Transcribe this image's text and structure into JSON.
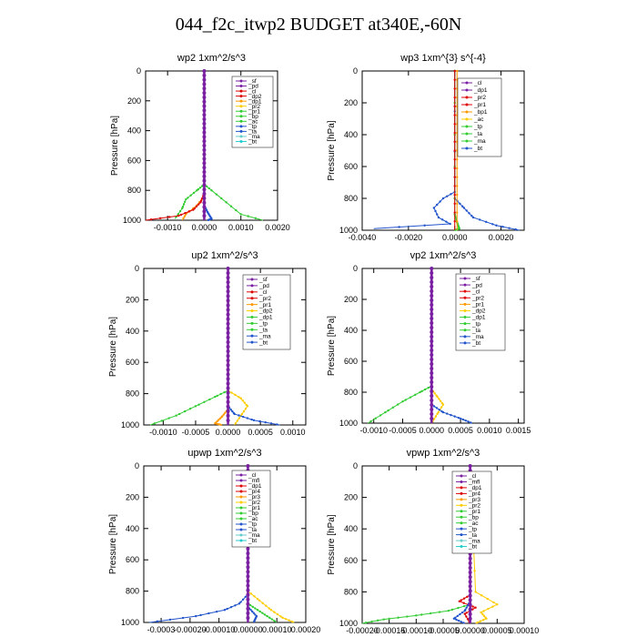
{
  "title": "044_f2c_itwp2  BUDGET at340E,-60N",
  "chart_data": [
    {
      "type": "line",
      "title": "wp2  1xm^2/s^3",
      "ylabel": "Pressure [hPa]",
      "xlim": [
        -0.0016,
        0.002
      ],
      "ylim": [
        1000,
        0
      ],
      "yticks": [
        "0",
        "200",
        "400",
        "600",
        "800",
        "1000"
      ],
      "xticks": [
        "-0.0010",
        "0.0000",
        "0.0010",
        "0.0020"
      ],
      "xtick_values": [
        -0.001,
        0,
        0.001,
        0.002
      ],
      "legend": [
        "_sf",
        "_pd",
        "_cl",
        "_dp2",
        "_dp1",
        "_pr2",
        "_pr1",
        "_bp",
        "_ac",
        "_tp",
        "_ta",
        "_ma",
        "_bt"
      ],
      "series": [
        {
          "name": "_pr2",
          "color": "#ff9900",
          "x": [
            0,
            0,
            0,
            0,
            -0.0002,
            -0.0005,
            -0.0006
          ],
          "y": [
            0,
            700,
            780,
            840,
            900,
            960,
            1000
          ]
        },
        {
          "name": "_ac",
          "color": "#33cc33",
          "x": [
            0,
            0,
            0,
            0.0002,
            0.0006,
            0.001,
            0.0016
          ],
          "y": [
            0,
            700,
            760,
            800,
            880,
            960,
            1000
          ]
        },
        {
          "name": "_bp",
          "color": "#33cc33",
          "x": [
            0,
            0,
            -0.0002,
            -0.0005,
            -0.0006,
            -0.0008
          ],
          "y": [
            0,
            760,
            800,
            860,
            920,
            990
          ]
        },
        {
          "name": "_cl",
          "color": "#dd0000",
          "x": [
            0,
            0,
            -0.0001,
            -0.0003,
            -0.0007,
            -0.0016
          ],
          "y": [
            0,
            820,
            880,
            930,
            970,
            1000
          ]
        },
        {
          "name": "_tp",
          "color": "#2255cc",
          "x": [
            0,
            0,
            0.0001,
            0.0002,
            0.0001
          ],
          "y": [
            0,
            900,
            950,
            990,
            1000
          ]
        },
        {
          "name": "_bt",
          "color": "#7a1fa2",
          "x": [
            0,
            0
          ],
          "y": [
            0,
            1000
          ]
        }
      ]
    },
    {
      "type": "line",
      "title": "wp3  1xm^{3} s^{-4}",
      "ylabel": "Pressure [hPa]",
      "xlim": [
        -0.004,
        0.003
      ],
      "ylim": [
        1000,
        0
      ],
      "yticks": [
        "0",
        "200",
        "400",
        "600",
        "800",
        "1000"
      ],
      "xticks": [
        "-0.0040",
        "-0.0020",
        "0.0000",
        "0.0020"
      ],
      "xtick_values": [
        -0.004,
        -0.002,
        0,
        0.002
      ],
      "legend": [
        "_cl",
        "_dp1",
        "_pr2",
        "_pr1",
        "_bp1",
        "_ac",
        "_tp",
        "_ta",
        "_ma",
        "_bt"
      ],
      "series": [
        {
          "name": "_ta",
          "color": "#2255cc",
          "x": [
            0,
            0,
            -0.0005,
            -0.0009,
            -0.0007,
            -0.0002,
            -0.0035
          ],
          "y": [
            0,
            760,
            800,
            860,
            920,
            960,
            990
          ]
        },
        {
          "name": "_tp",
          "color": "#2255cc",
          "x": [
            0,
            0,
            0.0004,
            0.0008,
            0.0018,
            0.0028
          ],
          "y": [
            0,
            800,
            860,
            920,
            970,
            1000
          ]
        },
        {
          "name": "_ac",
          "color": "#33cc33",
          "x": [
            0,
            0,
            0.0001,
            0.0002,
            0
          ],
          "y": [
            0,
            900,
            950,
            990,
            1000
          ]
        },
        {
          "name": "_dp1",
          "color": "#dd0000",
          "x": [
            0,
            0
          ],
          "y": [
            0,
            1000
          ]
        },
        {
          "name": "_pr2",
          "color": "#ff9900",
          "x": [
            0.0001,
            0.0001
          ],
          "y": [
            0,
            1000
          ]
        }
      ]
    },
    {
      "type": "line",
      "title": "up2  1xm^2/s^3",
      "ylabel": "Pressure [hPa]",
      "xlim": [
        -0.0013,
        0.0012
      ],
      "ylim": [
        1000,
        0
      ],
      "yticks": [
        "0",
        "200",
        "400",
        "600",
        "800",
        "1000"
      ],
      "xticks": [
        "-0.0010",
        "-0.0005",
        "0.0000",
        "0.0005",
        "0.0010"
      ],
      "xtick_values": [
        -0.001,
        -0.0005,
        0,
        0.0005,
        0.001
      ],
      "legend": [
        "_sf",
        "_pd",
        "_cl",
        "_pr2",
        "_pr1",
        "_dp2",
        "_dp1",
        "_tp",
        "_ta",
        "_ma",
        "_bt"
      ],
      "series": [
        {
          "name": "_dp1",
          "color": "#33cc33",
          "x": [
            0,
            0,
            -0.0002,
            -0.0005,
            -0.0008,
            -0.0012
          ],
          "y": [
            0,
            780,
            820,
            880,
            940,
            1000
          ]
        },
        {
          "name": "_pr1",
          "color": "#ffcc00",
          "x": [
            0,
            0,
            0.0002,
            0.0003,
            0.0002,
            0.0001
          ],
          "y": [
            0,
            780,
            830,
            880,
            940,
            1000
          ]
        },
        {
          "name": "_ta",
          "color": "#2255cc",
          "x": [
            0,
            0,
            0.0001,
            0.0004,
            0.0008
          ],
          "y": [
            0,
            880,
            930,
            970,
            1000
          ]
        },
        {
          "name": "_pr2",
          "color": "#ff9900",
          "x": [
            0,
            0,
            -0.0001,
            -0.0002,
            -0.0001
          ],
          "y": [
            0,
            900,
            950,
            990,
            1000
          ]
        },
        {
          "name": "_bt",
          "color": "#7a1fa2",
          "x": [
            0,
            0
          ],
          "y": [
            0,
            1000
          ]
        }
      ]
    },
    {
      "type": "line",
      "title": "vp2  1xm^2/s^3",
      "ylabel": "Pressure [hPa]",
      "xlim": [
        -0.0012,
        0.0016
      ],
      "ylim": [
        1000,
        0
      ],
      "yticks": [
        "0",
        "200",
        "400",
        "600",
        "800",
        "1000"
      ],
      "xticks": [
        "-0.0010",
        "-0.0005",
        "0.0000",
        "0.0005",
        "0.0010",
        "0.0015"
      ],
      "xtick_values": [
        -0.001,
        -0.0005,
        0,
        0.0005,
        0.001,
        0.0015
      ],
      "legend": [
        "_sf",
        "_pd",
        "_cl",
        "_pr2",
        "_pr1",
        "_dp2",
        "_dp1",
        "_tp",
        "_ta",
        "_ma",
        "_bt"
      ],
      "series": [
        {
          "name": "_dp1",
          "color": "#33cc33",
          "x": [
            0,
            0,
            -0.0002,
            -0.0005,
            -0.0008,
            -0.0011
          ],
          "y": [
            0,
            760,
            800,
            860,
            930,
            1000
          ]
        },
        {
          "name": "_pr1",
          "color": "#ffcc00",
          "x": [
            0,
            0,
            0.0001,
            0.0002,
            0.0001,
            0
          ],
          "y": [
            0,
            780,
            830,
            880,
            940,
            1000
          ]
        },
        {
          "name": "_ta",
          "color": "#2255cc",
          "x": [
            0,
            0,
            0.0002,
            0.0005,
            0.0007
          ],
          "y": [
            0,
            880,
            930,
            970,
            1000
          ]
        },
        {
          "name": "_bt",
          "color": "#7a1fa2",
          "x": [
            0,
            0
          ],
          "y": [
            0,
            1000
          ]
        }
      ]
    },
    {
      "type": "line",
      "title": "upwp  1xm^2/s^3",
      "ylabel": "Pressure [hPa]",
      "xlim": [
        -0.00036,
        0.0002
      ],
      "ylim": [
        1000,
        0
      ],
      "yticks": [
        "0",
        "200",
        "400",
        "600",
        "800",
        "1000"
      ],
      "xticks": [
        "-0.0003",
        "-0.00020",
        "-0.00010",
        "0.00000",
        "0.00010",
        "0.00020"
      ],
      "xtick_values": [
        -0.0003,
        -0.0002,
        -0.0001,
        0,
        0.0001,
        0.0002
      ],
      "legend": [
        "_cl",
        "_mfl",
        "_dp1",
        "_pr4",
        "_pr3",
        "_pr2",
        "_pr1",
        "_bp",
        "_ac",
        "_tp",
        "_ta",
        "_ma",
        "_bt"
      ],
      "series": [
        {
          "name": "_ta",
          "color": "#2255cc",
          "x": [
            0,
            0,
            -3e-05,
            -8e-05,
            -0.00018,
            -0.00034
          ],
          "y": [
            0,
            820,
            880,
            920,
            960,
            1000
          ]
        },
        {
          "name": "_pr1",
          "color": "#ffcc00",
          "x": [
            0,
            0,
            4e-05,
            8e-05,
            0.00012,
            0.00016
          ],
          "y": [
            0,
            800,
            860,
            920,
            970,
            1000
          ]
        },
        {
          "name": "_ac",
          "color": "#33cc33",
          "x": [
            0,
            0,
            5e-05,
            0.0001
          ],
          "y": [
            0,
            880,
            940,
            1000
          ]
        },
        {
          "name": "_tp",
          "color": "#2255cc",
          "x": [
            0,
            0,
            3e-05,
            2e-05
          ],
          "y": [
            0,
            900,
            960,
            1000
          ]
        },
        {
          "name": "_bt",
          "color": "#7a1fa2",
          "x": [
            0,
            0
          ],
          "y": [
            0,
            1000
          ]
        }
      ]
    },
    {
      "type": "line",
      "title": "vpwp  1xm^2/s^3",
      "ylabel": "Pressure [hPa]",
      "xlim": [
        -0.0002,
        0.0001
      ],
      "ylim": [
        1000,
        0
      ],
      "yticks": [
        "0",
        "200",
        "400",
        "600",
        "800",
        "1000"
      ],
      "xticks": [
        "-0.00020",
        "-0.00015",
        "-0.00010",
        "-0.00005",
        "0.00000",
        "0.00005",
        "0.00010"
      ],
      "xtick_values": [
        -0.0002,
        -0.00015,
        -0.0001,
        -5e-05,
        0,
        5e-05,
        0.0001
      ],
      "legend": [
        "_cl",
        "_mfl",
        "_dp1",
        "_pr4",
        "_pr3",
        "_pr2",
        "_pr1",
        "_bp",
        "_ac",
        "_tp",
        "_ta",
        "_ma",
        "_bt"
      ],
      "series": [
        {
          "name": "_ac",
          "color": "#33cc33",
          "x": [
            0,
            0,
            -4e-05,
            -0.0001,
            -0.00016,
            -0.0002
          ],
          "y": [
            0,
            880,
            920,
            950,
            975,
            1000
          ]
        },
        {
          "name": "_pr1",
          "color": "#ffcc00",
          "x": [
            0,
            1e-05,
            5e-05,
            2e-05,
            3e-05,
            1e-05
          ],
          "y": [
            0,
            800,
            880,
            930,
            970,
            1000
          ]
        },
        {
          "name": "_cl",
          "color": "#dd0000",
          "x": [
            0,
            0,
            -2e-05,
            1e-05,
            -1e-05,
            0
          ],
          "y": [
            0,
            820,
            860,
            900,
            940,
            1000
          ]
        },
        {
          "name": "_ta",
          "color": "#2255cc",
          "x": [
            0,
            0,
            -1e-05,
            -3e-05,
            -1e-05
          ],
          "y": [
            0,
            860,
            920,
            970,
            1000
          ]
        },
        {
          "name": "_bt",
          "color": "#7a1fa2",
          "x": [
            0,
            0
          ],
          "y": [
            0,
            1000
          ]
        }
      ]
    }
  ]
}
